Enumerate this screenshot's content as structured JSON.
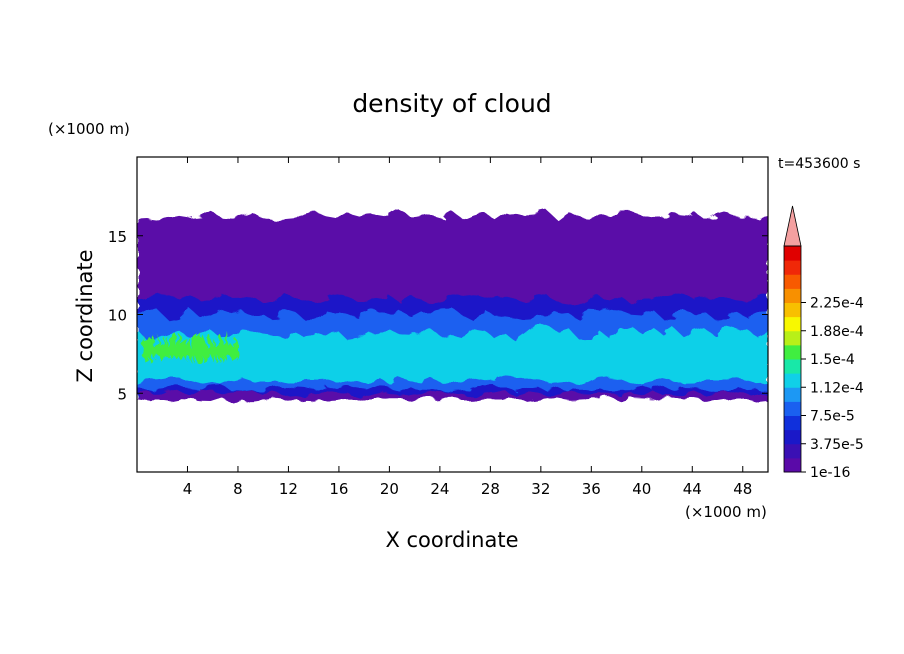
{
  "chart_data": {
    "type": "heatmap",
    "title": "density of cloud",
    "time_label": "t=453600 s",
    "xlabel": "X coordinate",
    "ylabel": "Z coordinate",
    "x_unit": "(×1000 m)",
    "y_unit": "(×1000 m)",
    "xlim": [
      0,
      50
    ],
    "ylim": [
      0,
      20
    ],
    "x_ticks": [
      4,
      8,
      12,
      16,
      20,
      24,
      28,
      32,
      36,
      40,
      44,
      48
    ],
    "y_ticks": [
      5,
      10,
      15
    ],
    "colorbar": {
      "labels": [
        "1e-16",
        "3.75e-5",
        "7.5e-5",
        "1.12e-4",
        "1.5e-4",
        "1.88e-4",
        "2.25e-4"
      ],
      "colors": [
        "#5a0aa8",
        "#3a10b4",
        "#1a18c8",
        "#1030dc",
        "#1a60f0",
        "#1c98f4",
        "#10d0e8",
        "#18e8a8",
        "#40ee40",
        "#b8f018",
        "#f8f800",
        "#f8c000",
        "#f89000",
        "#f85a00",
        "#f02808",
        "#e00000"
      ],
      "overflow_color": "#f4a0a0"
    },
    "regions": [
      {
        "level": "1e-16",
        "z_bottom": 4.6,
        "z_top": 16.3,
        "x_start": 0,
        "x_end": 50
      },
      {
        "level": "3.75e-5",
        "z_bottom": 5.0,
        "z_top": 11.0,
        "x_start": 0,
        "x_end": 50
      },
      {
        "level": "7.5e-5",
        "z_bottom": 5.3,
        "z_top": 10.0,
        "x_start": 0,
        "x_end": 50
      },
      {
        "level": "1.12e-4",
        "z_bottom": 5.8,
        "z_top": 8.8,
        "x_start": 0,
        "x_end": 50
      },
      {
        "level": "1.5e-4",
        "z_bottom": 7.2,
        "z_top": 8.4,
        "x_start": 0.5,
        "x_end": 8
      }
    ]
  }
}
